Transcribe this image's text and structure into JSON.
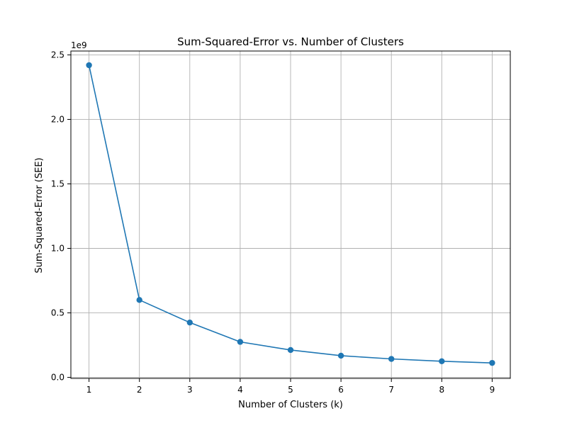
{
  "chart_data": {
    "type": "line",
    "title": "Sum-Squared-Error vs. Number of Clusters",
    "xlabel": "Number of Clusters (k)",
    "ylabel": "Sum-Squared-Error (SEE)",
    "y_offset_label": "1e9",
    "y_scale_factor": 1000000000,
    "x": [
      1,
      2,
      3,
      4,
      5,
      6,
      7,
      8,
      9
    ],
    "series": [
      {
        "values": [
          2420000000,
          600000000,
          425000000,
          275000000,
          212000000,
          168000000,
          143000000,
          125000000,
          112000000
        ],
        "color": "#1f77b4",
        "marker": "circle"
      }
    ],
    "xlim": [
      0.64,
      9.36
    ],
    "ylim": [
      -8000000,
      2530000000
    ],
    "x_ticks": [
      1,
      2,
      3,
      4,
      5,
      6,
      7,
      8,
      9
    ],
    "x_tick_labels": [
      "1",
      "2",
      "3",
      "4",
      "5",
      "6",
      "7",
      "8",
      "9"
    ],
    "y_ticks": [
      0,
      500000000,
      1000000000,
      1500000000,
      2000000000,
      2500000000
    ],
    "y_tick_labels": [
      "0.0",
      "0.5",
      "1.0",
      "1.5",
      "2.0",
      "2.5"
    ],
    "grid": true,
    "grid_color": "#b0b0b0",
    "legend": "none"
  }
}
